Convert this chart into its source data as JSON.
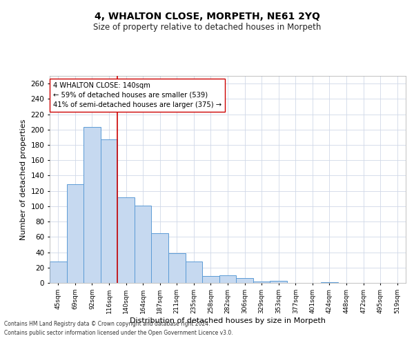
{
  "title": "4, WHALTON CLOSE, MORPETH, NE61 2YQ",
  "subtitle": "Size of property relative to detached houses in Morpeth",
  "xlabel": "Distribution of detached houses by size in Morpeth",
  "ylabel": "Number of detached properties",
  "categories": [
    "45sqm",
    "69sqm",
    "92sqm",
    "116sqm",
    "140sqm",
    "164sqm",
    "187sqm",
    "211sqm",
    "235sqm",
    "258sqm",
    "282sqm",
    "306sqm",
    "329sqm",
    "353sqm",
    "377sqm",
    "401sqm",
    "424sqm",
    "448sqm",
    "472sqm",
    "495sqm",
    "519sqm"
  ],
  "values": [
    28,
    129,
    203,
    187,
    112,
    101,
    65,
    39,
    28,
    9,
    10,
    6,
    2,
    3,
    0,
    0,
    1,
    0,
    0,
    0,
    0
  ],
  "bar_color": "#c6d9f0",
  "bar_edge_color": "#5b9bd5",
  "red_line_index": 4,
  "red_line_color": "#cc0000",
  "annotation_line1": "4 WHALTON CLOSE: 140sqm",
  "annotation_line2": "← 59% of detached houses are smaller (539)",
  "annotation_line3": "41% of semi-detached houses are larger (375) →",
  "annotation_box_color": "#ffffff",
  "annotation_box_edge_color": "#cc0000",
  "ylim": [
    0,
    270
  ],
  "yticks": [
    0,
    20,
    40,
    60,
    80,
    100,
    120,
    140,
    160,
    180,
    200,
    220,
    240,
    260
  ],
  "footnote1": "Contains HM Land Registry data © Crown copyright and database right 2024.",
  "footnote2": "Contains public sector information licensed under the Open Government Licence v3.0.",
  "bg_color": "#ffffff",
  "grid_color": "#d0d8e8"
}
